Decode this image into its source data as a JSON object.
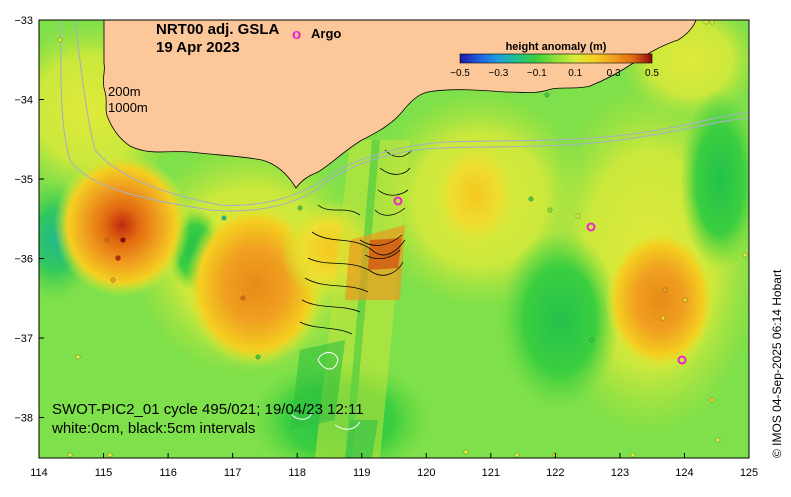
{
  "map": {
    "title_line1": "NRT00 adj. GSLA",
    "title_line2": "19 Apr 2023",
    "argo_marker": "o",
    "argo_label": "Argo",
    "isobath_200": "200m",
    "isobath_1000": "1000m",
    "swot_caption": "SWOT-PIC2_01 cycle 495/021; 19/04/23 12:11",
    "contour_caption": "white:0cm, black:5cm intervals",
    "credit": "© IMOS 04-Sep-2025 06:14 Hobart",
    "x_axis_ticks": [
      "114",
      "115",
      "116",
      "117",
      "118",
      "119",
      "120",
      "121",
      "122",
      "123",
      "124",
      "125"
    ],
    "y_axis_ticks": [
      "−33",
      "−34",
      "−35",
      "−36",
      "−37",
      "−38"
    ]
  },
  "colorbar": {
    "title": "height anomaly (m)",
    "ticks": [
      "−0.5",
      "−0.3",
      "−0.1",
      "0.1",
      "0.3",
      "0.5"
    ],
    "colors": [
      "#1a1aa8",
      "#1f5fe0",
      "#1f9ed8",
      "#22c08a",
      "#3fcf3a",
      "#8fe03a",
      "#d8ec3a",
      "#f4d020",
      "#f0a020",
      "#e26a10",
      "#c02a10",
      "#8a0a0a"
    ]
  },
  "colors": {
    "land": "#fcc89a",
    "ocean_base": "#7ee04a",
    "argo": "#ee22cc"
  }
}
